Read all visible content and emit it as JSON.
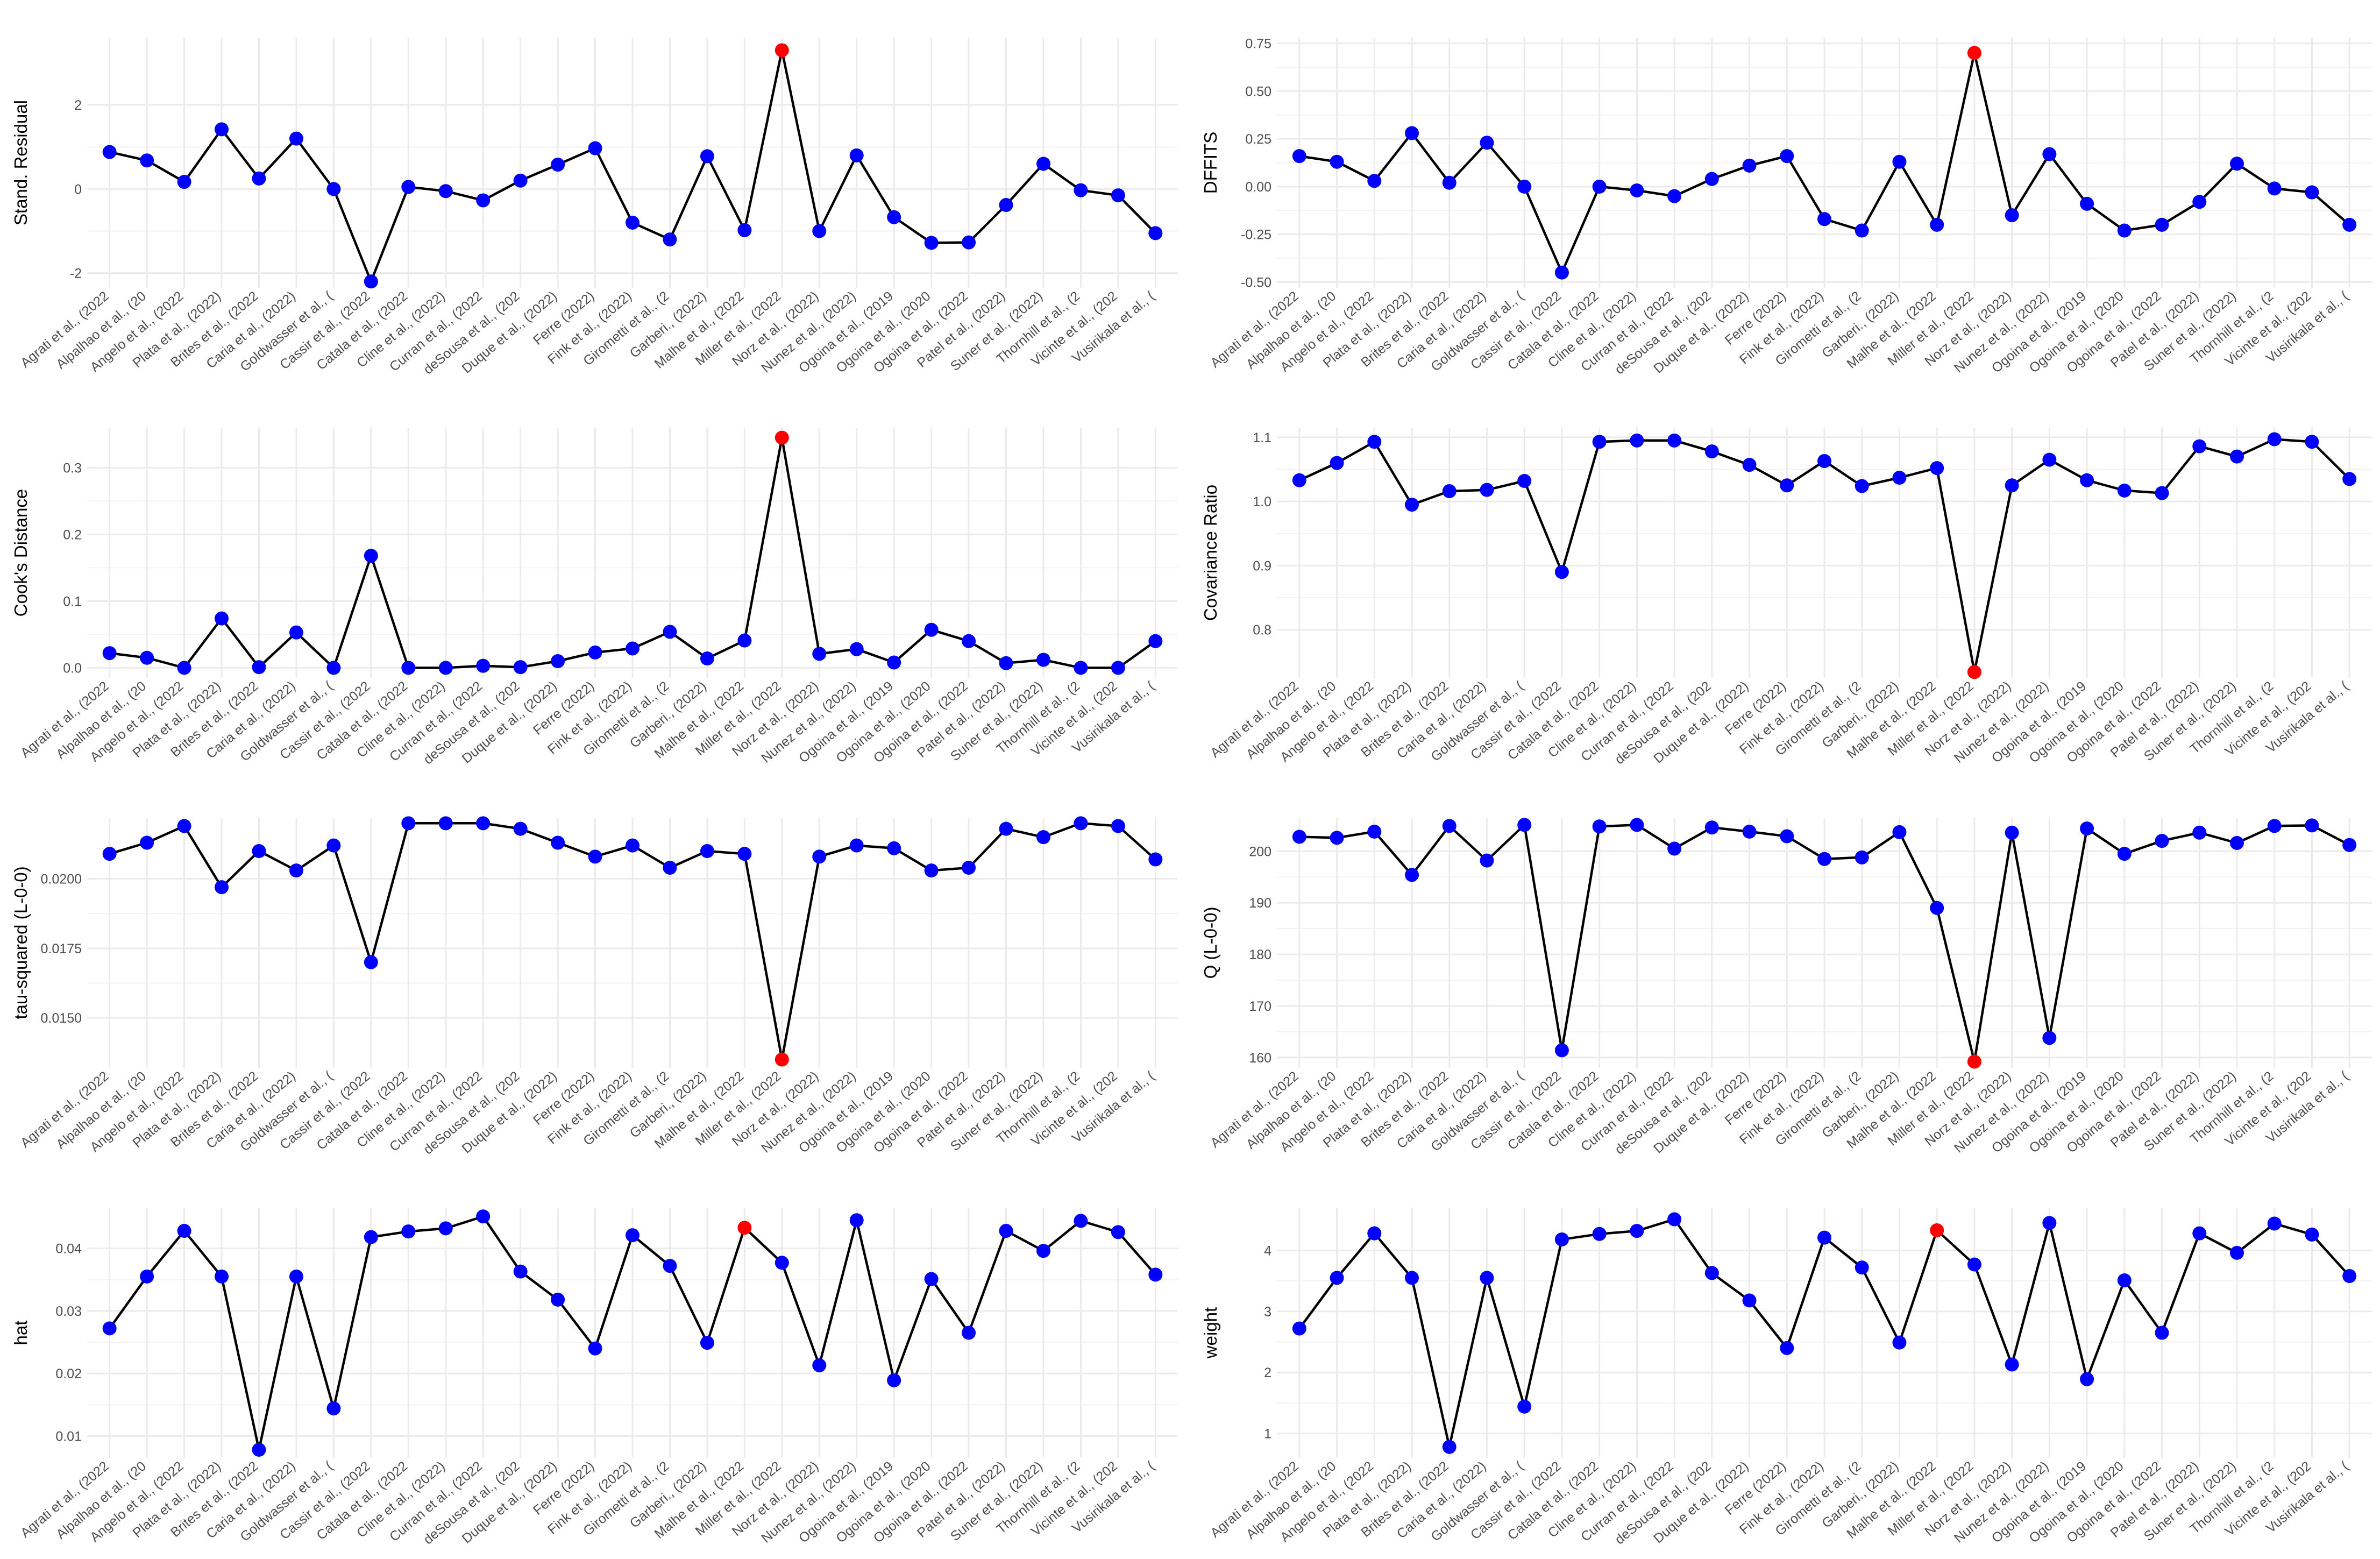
{
  "colors": {
    "normal": "#0000ff",
    "influential": "#ff0000",
    "line": "#000000"
  },
  "chart_data": [
    {
      "type": "line",
      "ylabel": "Stand. Residual",
      "ylim": [
        -2.35,
        3.6
      ],
      "yticks": [
        -2,
        0,
        2
      ],
      "ytick_labels": [
        "-2",
        "0",
        "2"
      ],
      "categories": [
        "Agrati et al., (2022",
        "Alpalhao et al., (20",
        "Angelo et al., (2022",
        "Plata et al., (2022)",
        "Brites et al., (2022",
        "Caria et al., (2022)",
        "Goldwasser et al., (",
        "Cassir et al., (2022",
        "Catala et al., (2022",
        "Cline et al., (2022)",
        "Curran et al., (2022",
        "deSousa et al., (202",
        "Duque et al., (2022)",
        "Ferre (2022)",
        "Fink et al., (2022)",
        "Girometti et al., (2",
        "Garberi., (2022)",
        "Malhe et al., (2022",
        "Miller et al., (2022",
        "Norz et al., (2022)",
        "Nunez et al., (2022)",
        "Ogoina et al., (2019",
        "Ogoina et al., (2020",
        "Ogoina et al., (2022",
        "Patel et al., (2022)",
        "Suner et al., (2022)",
        "Thornhill et al., (2",
        "Vicinte et al., (202",
        "Vusirikala et al., ("
      ],
      "values": [
        0.88,
        0.68,
        0.17,
        1.42,
        0.25,
        1.2,
        0.0,
        -2.2,
        0.05,
        -0.05,
        -0.27,
        0.2,
        0.58,
        0.97,
        -0.8,
        -1.2,
        0.78,
        -0.98,
        3.3,
        -1.0,
        0.8,
        -0.67,
        -1.28,
        -1.27,
        -0.38,
        0.6,
        -0.03,
        -0.15,
        -1.05
      ],
      "highlight_index": 18
    },
    {
      "type": "line",
      "ylabel": "DFFITS",
      "ylim": [
        -0.53,
        0.78
      ],
      "yticks": [
        -0.5,
        -0.25,
        0.0,
        0.25,
        0.5,
        0.75
      ],
      "ytick_labels": [
        "-0.50",
        "-0.25",
        "0.00",
        "0.25",
        "0.50",
        "0.75"
      ],
      "categories": [
        "Agrati et al., (2022",
        "Alpalhao et al., (20",
        "Angelo et al., (2022",
        "Plata et al., (2022)",
        "Brites et al., (2022",
        "Caria et al., (2022)",
        "Goldwasser et al., (",
        "Cassir et al., (2022",
        "Catala et al., (2022",
        "Cline et al., (2022)",
        "Curran et al., (2022",
        "deSousa et al., (202",
        "Duque et al., (2022)",
        "Ferre (2022)",
        "Fink et al., (2022)",
        "Girometti et al., (2",
        "Garberi., (2022)",
        "Malhe et al., (2022",
        "Miller et al., (2022",
        "Norz et al., (2022)",
        "Nunez et al., (2022)",
        "Ogoina et al., (2019",
        "Ogoina et al., (2020",
        "Ogoina et al., (2022",
        "Patel et al., (2022)",
        "Suner et al., (2022)",
        "Thornhill et al., (2",
        "Vicinte et al., (202",
        "Vusirikala et al., ("
      ],
      "values": [
        0.16,
        0.13,
        0.03,
        0.28,
        0.02,
        0.23,
        0.0,
        -0.45,
        0.0,
        -0.02,
        -0.05,
        0.04,
        0.11,
        0.16,
        -0.17,
        -0.23,
        0.13,
        -0.2,
        0.7,
        -0.15,
        0.17,
        -0.09,
        -0.23,
        -0.2,
        -0.08,
        0.12,
        -0.01,
        -0.03,
        -0.2
      ],
      "highlight_index": 18
    },
    {
      "type": "line",
      "ylabel": "Cook's Distance",
      "ylim": [
        -0.015,
        0.36
      ],
      "yticks": [
        0.0,
        0.1,
        0.2,
        0.3
      ],
      "ytick_labels": [
        "0.0",
        "0.1",
        "0.2",
        "0.3"
      ],
      "categories": [
        "Agrati et al., (2022",
        "Alpalhao et al., (20",
        "Angelo et al., (2022",
        "Plata et al., (2022)",
        "Brites et al., (2022",
        "Caria et al., (2022)",
        "Goldwasser et al., (",
        "Cassir et al., (2022",
        "Catala et al., (2022",
        "Cline et al., (2022)",
        "Curran et al., (2022",
        "deSousa et al., (202",
        "Duque et al., (2022)",
        "Ferre (2022)",
        "Fink et al., (2022)",
        "Girometti et al., (2",
        "Garberi., (2022)",
        "Malhe et al., (2022",
        "Miller et al., (2022",
        "Norz et al., (2022)",
        "Nunez et al., (2022)",
        "Ogoina et al., (2019",
        "Ogoina et al., (2020",
        "Ogoina et al., (2022",
        "Patel et al., (2022)",
        "Suner et al., (2022)",
        "Thornhill et al., (2",
        "Vicinte et al., (202",
        "Vusirikala et al., ("
      ],
      "values": [
        0.022,
        0.015,
        0.0,
        0.074,
        0.001,
        0.053,
        0.0,
        0.168,
        0.0,
        0.0,
        0.003,
        0.001,
        0.01,
        0.023,
        0.029,
        0.054,
        0.014,
        0.041,
        0.345,
        0.021,
        0.028,
        0.008,
        0.057,
        0.04,
        0.007,
        0.012,
        0.0,
        0.0,
        0.04
      ],
      "highlight_index": 18
    },
    {
      "type": "line",
      "ylabel": "Covariance Ratio",
      "ylim": [
        0.725,
        1.115
      ],
      "yticks": [
        0.8,
        0.9,
        1.0,
        1.1
      ],
      "ytick_labels": [
        "0.8",
        "0.9",
        "1.0",
        "1.1"
      ],
      "categories": [
        "Agrati et al., (2022",
        "Alpalhao et al., (20",
        "Angelo et al., (2022",
        "Plata et al., (2022)",
        "Brites et al., (2022",
        "Caria et al., (2022)",
        "Goldwasser et al., (",
        "Cassir et al., (2022",
        "Catala et al., (2022",
        "Cline et al., (2022)",
        "Curran et al., (2022",
        "deSousa et al., (202",
        "Duque et al., (2022)",
        "Ferre (2022)",
        "Fink et al., (2022)",
        "Girometti et al., (2",
        "Garberi., (2022)",
        "Malhe et al., (2022",
        "Miller et al., (2022",
        "Norz et al., (2022)",
        "Nunez et al., (2022)",
        "Ogoina et al., (2019",
        "Ogoina et al., (2020",
        "Ogoina et al., (2022",
        "Patel et al., (2022)",
        "Suner et al., (2022)",
        "Thornhill et al., (2",
        "Vicinte et al., (202",
        "Vusirikala et al., ("
      ],
      "values": [
        1.033,
        1.06,
        1.093,
        0.995,
        1.016,
        1.018,
        1.032,
        0.89,
        1.093,
        1.095,
        1.095,
        1.078,
        1.057,
        1.025,
        1.063,
        1.024,
        1.037,
        1.052,
        0.734,
        1.025,
        1.065,
        1.033,
        1.017,
        1.013,
        1.086,
        1.07,
        1.097,
        1.093,
        1.035
      ],
      "highlight_index": 18
    },
    {
      "type": "line",
      "ylabel": "tau-squared (L-0-0)",
      "ylim": [
        0.0132,
        0.0222
      ],
      "yticks": [
        0.015,
        0.0175,
        0.02
      ],
      "ytick_labels": [
        "0.0150",
        "0.0175",
        "0.0200"
      ],
      "categories": [
        "Agrati et al., (2022",
        "Alpalhao et al., (20",
        "Angelo et al., (2022",
        "Plata et al., (2022)",
        "Brites et al., (2022",
        "Caria et al., (2022)",
        "Goldwasser et al., (",
        "Cassir et al., (2022",
        "Catala et al., (2022",
        "Cline et al., (2022)",
        "Curran et al., (2022",
        "deSousa et al., (202",
        "Duque et al., (2022)",
        "Ferre (2022)",
        "Fink et al., (2022)",
        "Girometti et al., (2",
        "Garberi., (2022)",
        "Malhe et al., (2022",
        "Miller et al., (2022",
        "Norz et al., (2022)",
        "Nunez et al., (2022)",
        "Ogoina et al., (2019",
        "Ogoina et al., (2020",
        "Ogoina et al., (2022",
        "Patel et al., (2022)",
        "Suner et al., (2022)",
        "Thornhill et al., (2",
        "Vicinte et al., (202",
        "Vusirikala et al., ("
      ],
      "values": [
        0.0209,
        0.0213,
        0.0219,
        0.0197,
        0.021,
        0.0203,
        0.0212,
        0.017,
        0.022,
        0.022,
        0.022,
        0.0218,
        0.0213,
        0.0208,
        0.0212,
        0.0204,
        0.021,
        0.0209,
        0.0135,
        0.0208,
        0.0212,
        0.0211,
        0.0203,
        0.0204,
        0.0218,
        0.0215,
        0.022,
        0.0219,
        0.0207
      ],
      "highlight_index": 18
    },
    {
      "type": "line",
      "ylabel": "Q (L-0-0)",
      "ylim": [
        158,
        206.5
      ],
      "yticks": [
        160,
        170,
        180,
        190,
        200
      ],
      "ytick_labels": [
        "160",
        "170",
        "180",
        "190",
        "200"
      ],
      "categories": [
        "Agrati et al., (2022",
        "Alpalhao et al., (20",
        "Angelo et al., (2022",
        "Plata et al., (2022)",
        "Brites et al., (2022",
        "Caria et al., (2022)",
        "Goldwasser et al., (",
        "Cassir et al., (2022",
        "Catala et al., (2022",
        "Cline et al., (2022)",
        "Curran et al., (2022",
        "deSousa et al., (202",
        "Duque et al., (2022)",
        "Ferre (2022)",
        "Fink et al., (2022)",
        "Girometti et al., (2",
        "Garberi., (2022)",
        "Malhe et al., (2022",
        "Miller et al., (2022",
        "Norz et al., (2022)",
        "Nunez et al., (2022)",
        "Ogoina et al., (2019",
        "Ogoina et al., (2020",
        "Ogoina et al., (2022",
        "Patel et al., (2022)",
        "Suner et al., (2022)",
        "Thornhill et al., (2",
        "Vicinte et al., (202",
        "Vusirikala et al., ("
      ],
      "values": [
        202.8,
        202.6,
        203.8,
        195.4,
        204.9,
        198.2,
        205.1,
        161.4,
        204.8,
        205.1,
        200.5,
        204.6,
        203.8,
        202.9,
        198.5,
        198.8,
        203.7,
        189.0,
        159.2,
        203.6,
        163.8,
        204.4,
        199.5,
        202.0,
        203.6,
        201.6,
        204.9,
        205.0,
        201.2
      ],
      "highlight_index": 18
    },
    {
      "type": "line",
      "ylabel": "hat",
      "ylim": [
        0.0065,
        0.0465
      ],
      "yticks": [
        0.01,
        0.02,
        0.03,
        0.04
      ],
      "ytick_labels": [
        "0.01",
        "0.02",
        "0.03",
        "0.04"
      ],
      "categories": [
        "Agrati et al., (2022",
        "Alpalhao et al., (20",
        "Angelo et al., (2022",
        "Plata et al., (2022)",
        "Brites et al., (2022",
        "Caria et al., (2022)",
        "Goldwasser et al., (",
        "Cassir et al., (2022",
        "Catala et al., (2022",
        "Cline et al., (2022)",
        "Curran et al., (2022",
        "deSousa et al., (202",
        "Duque et al., (2022)",
        "Ferre (2022)",
        "Fink et al., (2022)",
        "Girometti et al., (2",
        "Garberi., (2022)",
        "Malhe et al., (2022",
        "Miller et al., (2022",
        "Norz et al., (2022)",
        "Nunez et al., (2022)",
        "Ogoina et al., (2019",
        "Ogoina et al., (2020",
        "Ogoina et al., (2022",
        "Patel et al., (2022)",
        "Suner et al., (2022)",
        "Thornhill et al., (2",
        "Vicinte et al., (202",
        "Vusirikala et al., ("
      ],
      "values": [
        0.0272,
        0.0355,
        0.0428,
        0.0355,
        0.0078,
        0.0355,
        0.0144,
        0.0418,
        0.0427,
        0.0432,
        0.0451,
        0.0363,
        0.0318,
        0.024,
        0.0421,
        0.0372,
        0.0249,
        0.0433,
        0.0377,
        0.0213,
        0.0445,
        0.0189,
        0.0351,
        0.0265,
        0.0428,
        0.0396,
        0.0444,
        0.0426,
        0.0358
      ],
      "highlight_index": 17
    },
    {
      "type": "line",
      "ylabel": "weight",
      "ylim": [
        0.6,
        4.7
      ],
      "yticks": [
        1,
        2,
        3,
        4
      ],
      "ytick_labels": [
        "1",
        "2",
        "3",
        "4"
      ],
      "categories": [
        "Agrati et al., (2022",
        "Alpalhao et al., (20",
        "Angelo et al., (2022",
        "Plata et al., (2022)",
        "Brites et al., (2022",
        "Caria et al., (2022)",
        "Goldwasser et al., (",
        "Cassir et al., (2022",
        "Catala et al., (2022",
        "Cline et al., (2022)",
        "Curran et al., (2022",
        "deSousa et al., (202",
        "Duque et al., (2022)",
        "Ferre (2022)",
        "Fink et al., (2022)",
        "Girometti et al., (2",
        "Garberi., (2022)",
        "Malhe et al., (2022",
        "Miller et al., (2022",
        "Norz et al., (2022)",
        "Nunez et al., (2022)",
        "Ogoina et al., (2019",
        "Ogoina et al., (2020",
        "Ogoina et al., (2022",
        "Patel et al., (2022)",
        "Suner et al., (2022)",
        "Thornhill et al., (2",
        "Vicinte et al., (202",
        "Vusirikala et al., ("
      ],
      "values": [
        2.72,
        3.55,
        4.28,
        3.55,
        0.78,
        3.55,
        1.44,
        4.18,
        4.27,
        4.32,
        4.51,
        3.63,
        3.18,
        2.4,
        4.21,
        3.72,
        2.49,
        4.33,
        3.77,
        2.13,
        4.45,
        1.89,
        3.51,
        2.65,
        4.28,
        3.96,
        4.44,
        4.26,
        3.58
      ],
      "highlight_index": 17
    }
  ]
}
